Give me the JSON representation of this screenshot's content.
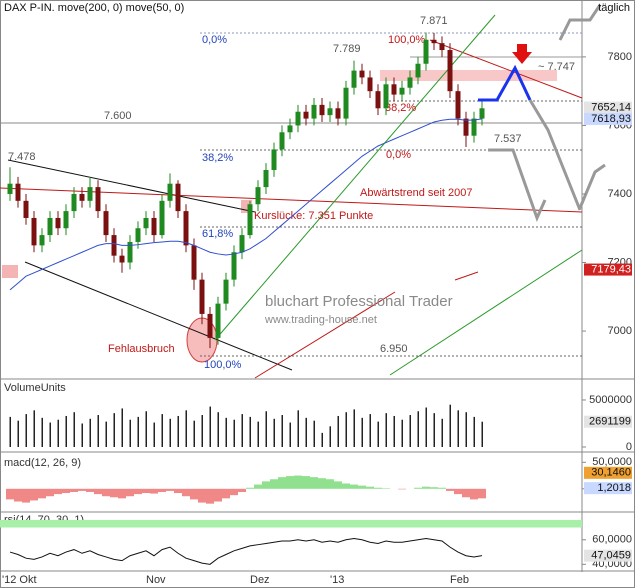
{
  "chart_data": [
    {
      "type": "candlestick",
      "title": "DAX P-IN. move(200, 0) move(50, 0)",
      "period": "täglich",
      "categories": [
        "'12 Okt",
        null,
        null,
        null,
        null,
        null,
        null,
        null,
        null,
        null,
        null,
        null,
        null,
        null,
        null,
        null,
        null,
        null,
        "Nov",
        null,
        null,
        null,
        null,
        null,
        null,
        null,
        null,
        null,
        null,
        null,
        null,
        "Dez",
        null,
        null,
        null,
        null,
        null,
        null,
        null,
        null,
        null,
        "'13",
        null,
        null,
        null,
        null,
        null,
        null,
        null,
        null,
        null,
        null,
        null,
        null,
        null,
        null,
        "Feb",
        null,
        null,
        null
      ],
      "open": [
        7400,
        7430,
        7380,
        7330,
        7250,
        7280,
        7330,
        7300,
        7350,
        7400,
        7380,
        7420,
        7350,
        7280,
        7220,
        7200,
        7260,
        7300,
        7330,
        7280,
        7380,
        7430,
        7350,
        7250,
        7150,
        7050,
        6980,
        7080,
        7150,
        7230,
        7280,
        7370,
        7420,
        7470,
        7530,
        7580,
        7600,
        7640,
        7620,
        7660,
        7630,
        7650,
        7620,
        7710,
        7760,
        7740,
        7700,
        7650,
        7720,
        7690,
        7710,
        7740,
        7780,
        7850,
        7840,
        7820,
        7700,
        7620,
        7570,
        7620
      ],
      "high": [
        7478,
        7450,
        7400,
        7350,
        7300,
        7350,
        7350,
        7370,
        7420,
        7420,
        7450,
        7440,
        7370,
        7300,
        7240,
        7280,
        7320,
        7350,
        7350,
        7400,
        7460,
        7440,
        7370,
        7270,
        7170,
        7070,
        7100,
        7170,
        7250,
        7300,
        7380,
        7440,
        7490,
        7550,
        7600,
        7620,
        7660,
        7660,
        7680,
        7680,
        7670,
        7670,
        7730,
        7789,
        7780,
        7760,
        7720,
        7740,
        7740,
        7730,
        7760,
        7800,
        7871,
        7870,
        7860,
        7840,
        7720,
        7640,
        7640,
        7670
      ],
      "low": [
        7380,
        7360,
        7310,
        7230,
        7230,
        7260,
        7280,
        7280,
        7330,
        7360,
        7360,
        7330,
        7260,
        7200,
        7170,
        7180,
        7240,
        7280,
        7260,
        7270,
        7360,
        7330,
        7230,
        7120,
        7020,
        6950,
        6960,
        7060,
        7130,
        7210,
        7270,
        7350,
        7400,
        7450,
        7510,
        7560,
        7580,
        7600,
        7600,
        7610,
        7610,
        7600,
        7600,
        7690,
        7720,
        7680,
        7630,
        7630,
        7670,
        7670,
        7690,
        7720,
        7760,
        7820,
        7800,
        7680,
        7600,
        7537,
        7550,
        7600
      ],
      "close": [
        7430,
        7380,
        7330,
        7250,
        7280,
        7330,
        7300,
        7350,
        7400,
        7380,
        7420,
        7350,
        7280,
        7220,
        7200,
        7260,
        7300,
        7330,
        7280,
        7380,
        7430,
        7350,
        7250,
        7150,
        7050,
        6980,
        7080,
        7150,
        7230,
        7280,
        7370,
        7420,
        7470,
        7530,
        7580,
        7600,
        7640,
        7620,
        7660,
        7630,
        7650,
        7620,
        7710,
        7760,
        7740,
        7700,
        7650,
        7720,
        7690,
        7710,
        7740,
        7780,
        7850,
        7840,
        7820,
        7700,
        7620,
        7570,
        7620,
        7650
      ],
      "up_color": "#1f8a1f",
      "down_color": "#7a1010",
      "lines": [
        {
          "color": "#2f4fd0",
          "values": [
            7120,
            7140,
            7160,
            7170,
            7180,
            7190,
            7200,
            7210,
            7220,
            7230,
            7240,
            7250,
            7255,
            7255,
            7250,
            7250,
            7252,
            7255,
            7258,
            7260,
            7262,
            7262,
            7258,
            7250,
            7240,
            7230,
            7225,
            7222,
            7225,
            7230,
            7240,
            7255,
            7270,
            7290,
            7310,
            7330,
            7350,
            7370,
            7390,
            7410,
            7430,
            7450,
            7470,
            7490,
            7510,
            7525,
            7540,
            7550,
            7560,
            7570,
            7580,
            7590,
            7600,
            7610,
            7615,
            7618,
            7618,
            7615,
            7616,
            7619
          ]
        }
      ],
      "ylim": [
        6863,
        7966
      ],
      "yticks": [
        7000,
        7200,
        7400,
        7600,
        7800
      ],
      "grid": false,
      "price_labels": [
        {
          "value": 7652.14,
          "label": "7652,14",
          "color": "#e4e4e4"
        },
        {
          "value": 7618.93,
          "label": "7618,93",
          "color": "#c8d8ff"
        },
        {
          "value": 7179.43,
          "label": "7179,43",
          "color": "#d02020"
        }
      ],
      "annotations": [
        "7.871",
        "100,0%",
        "0,0%",
        "7.789",
        "~ 7.747",
        "7.600",
        "7.478",
        "38,2%",
        "38,2%",
        "0,0%",
        "7.537",
        "Abwärtstrend seit 2007",
        "Kurslücke: 7.351 Punkte",
        "61,8%",
        "Fehlausbruch",
        "6.950",
        "100,0%"
      ],
      "watermark": "bluchart Professional Trader",
      "url": "www.trading-house.net"
    },
    {
      "type": "bar",
      "title": "VolumeUnits",
      "color": "#222222",
      "values": [
        3200000,
        2800000,
        3500000,
        3900000,
        3100000,
        2600000,
        2900000,
        3300000,
        3700000,
        2500000,
        3000000,
        3400000,
        2700000,
        3600000,
        4100000,
        2900000,
        3200000,
        3800000,
        2600000,
        3500000,
        3000000,
        3300000,
        3900000,
        2800000,
        3400000,
        4300000,
        3700000,
        3100000,
        2900000,
        3500000,
        3200000,
        2700000,
        3800000,
        3000000,
        3400000,
        2600000,
        3900000,
        3100000,
        2800000,
        1500000,
        2200000,
        3300000,
        3700000,
        4000000,
        3100000,
        3500000,
        2700000,
        3600000,
        3300000,
        2900000,
        3400000,
        3800000,
        4200000,
        3600000,
        3000000,
        4500000,
        3900000,
        3700000,
        3200000,
        2691199
      ],
      "ylim": [
        0,
        5530000
      ],
      "yticks": [
        0,
        5000000
      ],
      "price_labels": [
        {
          "value": 2691199,
          "label": "2691199",
          "color": "#e4e4e4"
        }
      ]
    },
    {
      "type": "bar",
      "title": "macd(12, 26, 9)",
      "pos_color": "#90e090",
      "neg_color": "#f08888",
      "values": [
        -20,
        -24,
        -26,
        -22,
        -18,
        -14,
        -10,
        -8,
        -6,
        -4,
        -6,
        -10,
        -14,
        -16,
        -18,
        -14,
        -10,
        -8,
        -9,
        -6,
        -4,
        -8,
        -14,
        -20,
        -26,
        -28,
        -24,
        -18,
        -12,
        -6,
        2,
        8,
        14,
        18,
        22,
        24,
        25,
        24,
        22,
        20,
        18,
        14,
        10,
        8,
        6,
        4,
        2,
        1,
        0,
        -1,
        0,
        2,
        4,
        3,
        2,
        -4,
        -10,
        -16,
        -20,
        -18
      ],
      "ylim": [
        -40,
        60
      ],
      "yticks": [
        0,
        {
          "value": 50,
          "label": "50,0000"
        }
      ],
      "price_labels": [
        {
          "value": 30.146,
          "label": "30,1460",
          "color": "#f0a030"
        },
        {
          "value": 1.2018,
          "label": "1,2018",
          "color": "#c8d8ff"
        }
      ]
    },
    {
      "type": "line",
      "title": "rsi(14, 70, 30, 1)",
      "color": "#111111",
      "overbought": 70,
      "band_color": "#a8f0a8",
      "values": [
        50,
        48,
        45,
        44,
        46,
        49,
        47,
        50,
        52,
        49,
        51,
        48,
        46,
        44,
        43,
        47,
        49,
        51,
        47,
        52,
        54,
        49,
        45,
        43,
        41,
        40,
        45,
        48,
        51,
        53,
        55,
        56,
        57,
        58,
        59,
        59,
        60,
        59,
        60,
        58,
        59,
        58,
        60,
        61,
        60,
        58,
        57,
        59,
        58,
        58,
        59,
        60,
        61,
        60,
        59,
        54,
        50,
        47,
        46,
        47.0459
      ],
      "ylim": [
        37,
        81
      ],
      "yticks": [
        {
          "value": 40,
          "label": "40,0000"
        },
        {
          "value": 60,
          "label": "60,0000"
        }
      ],
      "price_labels": [
        {
          "value": 47.0459,
          "label": "47,0459",
          "color": "#e4e4e4"
        }
      ]
    }
  ]
}
